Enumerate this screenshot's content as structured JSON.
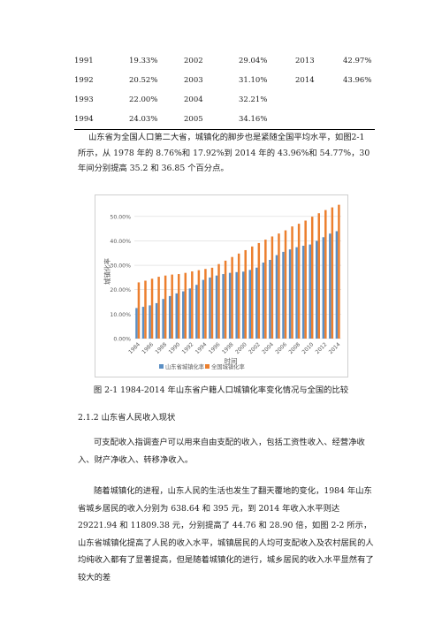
{
  "table": {
    "rows": [
      [
        "1991",
        "19.33%",
        "2002",
        "29.04%",
        "2013",
        "42.97%"
      ],
      [
        "1992",
        "20.52%",
        "2003",
        "31.10%",
        "2014",
        "43.96%"
      ],
      [
        "1993",
        "22.00%",
        "2004",
        "32.21%",
        "",
        ""
      ],
      [
        "1994",
        "24.03%",
        "2005",
        "34.16%",
        "",
        ""
      ]
    ]
  },
  "paragraph1": "山东省为全国人口第二大省，城镇化的脚步也是紧随全国平均水平，如图2-1 所示，从 1978 年的 8.76%和 17.92%到 2014 年的 43.96%和 54.77%，30 年间分别提高 35.2 和 36.85 个百分点。",
  "chart_data": {
    "type": "bar",
    "xlabel": "时间",
    "ylabel": "城镇化率",
    "ylim": [
      0,
      55
    ],
    "yticks": [
      "0.00%",
      "10.00%",
      "20.00%",
      "30.00%",
      "40.00%",
      "50.00%"
    ],
    "xtick_labels": [
      "1984",
      "1986",
      "1988",
      "1990",
      "1992",
      "1994",
      "1996",
      "1998",
      "2000",
      "2002",
      "2004",
      "2006",
      "2008",
      "2010",
      "2012",
      "2014"
    ],
    "categories": [
      "1984",
      "1985",
      "1986",
      "1987",
      "1988",
      "1989",
      "1990",
      "1991",
      "1992",
      "1993",
      "1994",
      "1995",
      "1996",
      "1997",
      "1998",
      "1999",
      "2000",
      "2001",
      "2002",
      "2003",
      "2004",
      "2005",
      "2006",
      "2007",
      "2008",
      "2009",
      "2010",
      "2011",
      "2012",
      "2013",
      "2014"
    ],
    "series": [
      {
        "name": "山东省城镇化率",
        "color": "#5b8fc4",
        "values": [
          12.5,
          13.0,
          13.6,
          14.5,
          16.2,
          17.4,
          18.5,
          19.33,
          20.52,
          22.0,
          24.03,
          25.0,
          25.8,
          26.4,
          26.9,
          27.2,
          27.4,
          28.1,
          29.04,
          31.1,
          32.21,
          34.16,
          35.5,
          36.5,
          37.4,
          38.0,
          38.5,
          40.0,
          41.5,
          42.97,
          43.96
        ]
      },
      {
        "name": "全国城镇化率",
        "color": "#ec7f2e",
        "values": [
          23.0,
          23.7,
          24.5,
          25.3,
          25.8,
          26.2,
          26.4,
          26.9,
          27.5,
          28.0,
          28.5,
          29.0,
          30.5,
          31.9,
          33.4,
          34.8,
          36.2,
          37.7,
          39.1,
          40.5,
          41.8,
          43.0,
          44.3,
          45.9,
          47.0,
          48.3,
          49.9,
          51.3,
          52.6,
          53.7,
          54.77
        ]
      }
    ]
  },
  "caption": "图 2-1 1984-2014 年山东省户籍人口城镇化率变化情况与全国的比较",
  "section_title": "2.1.2 山东省人民收入现状",
  "paragraph2": "可支配收入指调查户可以用来自由支配的收入，包括工资性收入、经营净收入、财产净收入、转移净收入。",
  "paragraph3": "随着城镇化的进程，山东人民的生活也发生了翻天覆地的变化，1984 年山东省城乡居民的收入分别为 638.64 和 395 元，到 2014 年收入水平则达 29221.94 和 11809.38 元，分别提高了 44.76 和 28.90 倍，如图 2-2 所示，山东省城镇化提高了人民的收入水平，城镇居民的人均可支配收入及农村居民的人均纯收入都有了显著提高，但是随着城镇化的进行，城乡居民的收入水平显然有了较大的差"
}
